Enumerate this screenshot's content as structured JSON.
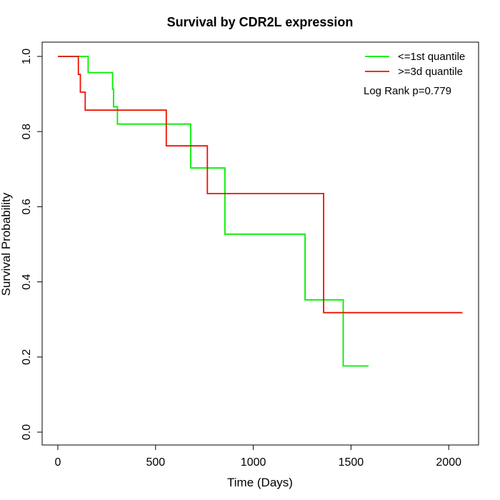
{
  "chart_data": {
    "type": "line",
    "subtype": "kaplan-meier-step",
    "title": "Survival by CDR2L expression",
    "xlabel": "Time (Days)",
    "ylabel": "Survival Probability",
    "xlim": [
      0,
      2070
    ],
    "ylim": [
      0,
      1.0
    ],
    "xticks": [
      0,
      500,
      1000,
      1500,
      2000
    ],
    "yticks": [
      0.0,
      0.2,
      0.4,
      0.6,
      0.8,
      1.0
    ],
    "xtick_labels": [
      "0",
      "500",
      "1000",
      "1500",
      "2000"
    ],
    "ytick_labels": [
      "0.0",
      "0.2",
      "0.4",
      "0.6",
      "0.8",
      "1.0"
    ],
    "grid": false,
    "legend_position": "top-right",
    "annotation": "Log Rank p=0.779",
    "series": [
      {
        "name": "<=1st quantile",
        "color": "#00ee00",
        "points": [
          [
            0,
            1.0
          ],
          [
            155,
            1.0
          ],
          [
            155,
            0.957
          ],
          [
            280,
            0.957
          ],
          [
            280,
            0.913
          ],
          [
            285,
            0.913
          ],
          [
            285,
            0.866
          ],
          [
            305,
            0.866
          ],
          [
            305,
            0.82
          ],
          [
            680,
            0.82
          ],
          [
            680,
            0.703
          ],
          [
            855,
            0.703
          ],
          [
            855,
            0.527
          ],
          [
            1265,
            0.527
          ],
          [
            1265,
            0.352
          ],
          [
            1460,
            0.352
          ],
          [
            1460,
            0.176
          ],
          [
            1590,
            0.176
          ]
        ]
      },
      {
        "name": ">=3d quantile",
        "color": "#ee1100",
        "points": [
          [
            0,
            1.0
          ],
          [
            105,
            1.0
          ],
          [
            105,
            0.952
          ],
          [
            115,
            0.952
          ],
          [
            115,
            0.905
          ],
          [
            140,
            0.905
          ],
          [
            140,
            0.857
          ],
          [
            555,
            0.857
          ],
          [
            555,
            0.762
          ],
          [
            765,
            0.762
          ],
          [
            765,
            0.635
          ],
          [
            1360,
            0.635
          ],
          [
            1360,
            0.318
          ],
          [
            2070,
            0.318
          ]
        ]
      }
    ]
  }
}
